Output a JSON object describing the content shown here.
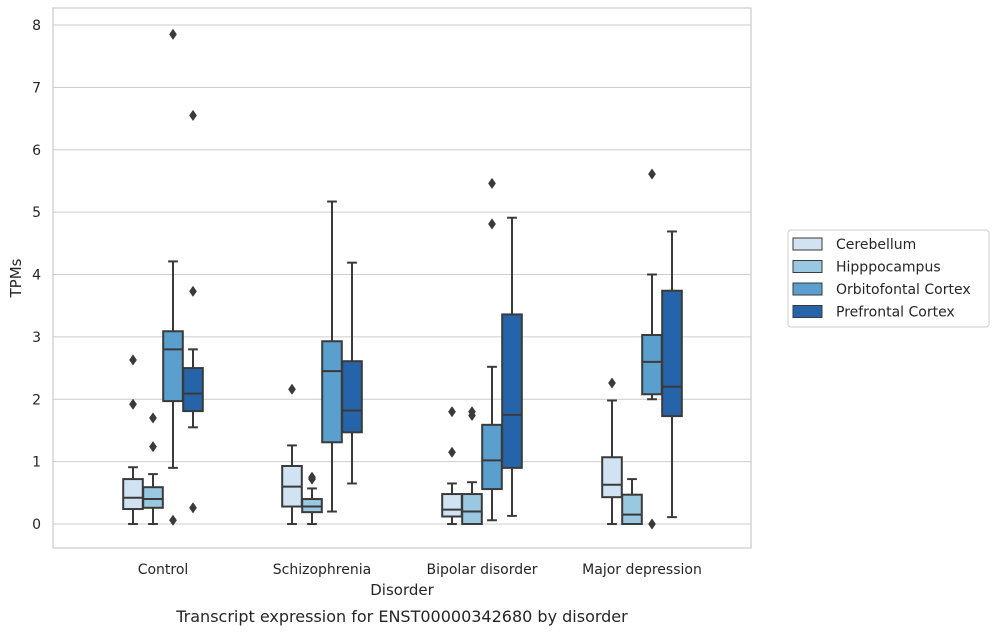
{
  "caption": "Transcript expression for ENST00000342680 by disorder",
  "chart_data": {
    "type": "box",
    "xlabel": "Disorder",
    "ylabel": "TPMs",
    "ylim": [
      -0.4,
      8.25
    ],
    "yticks": [
      0,
      1,
      2,
      3,
      4,
      5,
      6,
      7,
      8
    ],
    "grid": "horizontal",
    "legend_placement": "right",
    "categories": [
      "Control",
      "Schizophrenia",
      "Bipolar disorder",
      "Major depression"
    ],
    "series": [
      {
        "name": "Cerebellum",
        "color": "#d1e2f2",
        "boxes": [
          {
            "whisker_low": 0.0,
            "q1": 0.24,
            "median": 0.42,
            "q3": 0.72,
            "whisker_high": 0.91,
            "outliers": [
              1.92,
              2.63
            ]
          },
          {
            "whisker_low": 0.0,
            "q1": 0.28,
            "median": 0.6,
            "q3": 0.93,
            "whisker_high": 1.26,
            "outliers": [
              2.16
            ]
          },
          {
            "whisker_low": 0.0,
            "q1": 0.12,
            "median": 0.23,
            "q3": 0.48,
            "whisker_high": 0.65,
            "outliers": [
              1.15,
              1.8
            ]
          },
          {
            "whisker_low": 0.0,
            "q1": 0.43,
            "median": 0.63,
            "q3": 1.07,
            "whisker_high": 1.98,
            "outliers": [
              2.26
            ]
          }
        ]
      },
      {
        "name": "Hipppocampus",
        "color": "#9ac8e0",
        "boxes": [
          {
            "whisker_low": 0.0,
            "q1": 0.26,
            "median": 0.4,
            "q3": 0.59,
            "whisker_high": 0.8,
            "outliers": [
              1.24,
              1.7
            ]
          },
          {
            "whisker_low": 0.0,
            "q1": 0.19,
            "median": 0.28,
            "q3": 0.4,
            "whisker_high": 0.57,
            "outliers": [
              0.72,
              0.75
            ]
          },
          {
            "whisker_low": 0.0,
            "q1": 0.0,
            "median": 0.2,
            "q3": 0.48,
            "whisker_high": 0.67,
            "outliers": [
              1.74,
              1.8
            ]
          },
          {
            "whisker_low": 0.0,
            "q1": 0.0,
            "median": 0.15,
            "q3": 0.47,
            "whisker_high": 0.72,
            "outliers": []
          }
        ]
      },
      {
        "name": "Orbitofontal Cortex",
        "color": "#5a9fce",
        "boxes": [
          {
            "whisker_low": 0.9,
            "q1": 1.97,
            "median": 2.8,
            "q3": 3.09,
            "whisker_high": 4.21,
            "outliers": [
              0.06,
              7.85
            ]
          },
          {
            "whisker_low": 0.2,
            "q1": 1.31,
            "median": 2.45,
            "q3": 2.93,
            "whisker_high": 5.17,
            "outliers": []
          },
          {
            "whisker_low": 0.06,
            "q1": 0.56,
            "median": 1.02,
            "q3": 1.59,
            "whisker_high": 2.52,
            "outliers": [
              4.81,
              5.46
            ]
          },
          {
            "whisker_low": 2.0,
            "q1": 2.08,
            "median": 2.6,
            "q3": 3.03,
            "whisker_high": 4.0,
            "outliers": [
              0.0,
              5.61
            ]
          }
        ]
      },
      {
        "name": "Prefrontal Cortex",
        "color": "#2564a8",
        "boxes": [
          {
            "whisker_low": 1.55,
            "q1": 1.81,
            "median": 2.09,
            "q3": 2.5,
            "whisker_high": 2.8,
            "outliers": [
              0.26,
              3.73,
              6.55
            ]
          },
          {
            "whisker_low": 0.65,
            "q1": 1.47,
            "median": 1.82,
            "q3": 2.61,
            "whisker_high": 4.19,
            "outliers": []
          },
          {
            "whisker_low": 0.13,
            "q1": 0.9,
            "median": 1.75,
            "q3": 3.36,
            "whisker_high": 4.91,
            "outliers": []
          },
          {
            "whisker_low": 0.11,
            "q1": 1.73,
            "median": 2.2,
            "q3": 3.74,
            "whisker_high": 4.69,
            "outliers": []
          }
        ]
      }
    ]
  }
}
